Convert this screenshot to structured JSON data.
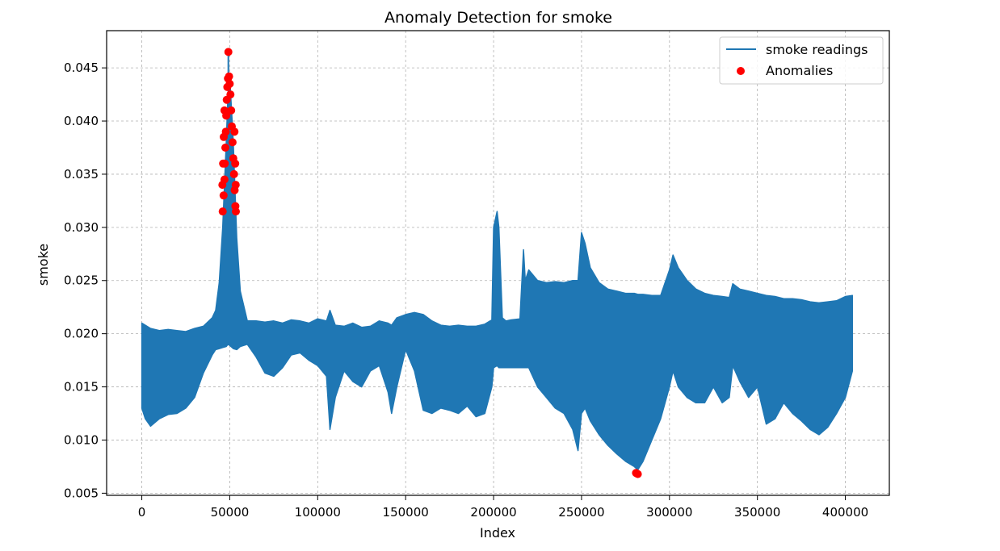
{
  "chart_data": {
    "type": "line",
    "title": "Anomaly Detection for smoke",
    "xlabel": "Index",
    "ylabel": "smoke",
    "xlim": [
      -20000,
      425000
    ],
    "ylim": [
      0.0048,
      0.0485
    ],
    "xticks": [
      0,
      50000,
      100000,
      150000,
      200000,
      250000,
      300000,
      350000,
      400000
    ],
    "yticks": [
      0.005,
      0.01,
      0.015,
      0.02,
      0.025,
      0.03,
      0.035,
      0.04,
      0.045
    ],
    "grid": true,
    "legend_position": "top-right",
    "legend": [
      "smoke readings",
      "Anomalies"
    ],
    "colors": {
      "line": "#1f77b4",
      "anomaly": "#ff0000",
      "grid": "#b0b0b0"
    },
    "series": [
      {
        "name": "smoke readings",
        "type": "band",
        "x": [
          0,
          2000,
          5000,
          10000,
          15000,
          20000,
          25000,
          30000,
          35000,
          40000,
          42000,
          44000,
          46000,
          48000,
          49000,
          50000,
          52000,
          54000,
          56000,
          60000,
          65000,
          70000,
          75000,
          80000,
          85000,
          90000,
          95000,
          100000,
          105000,
          107000,
          110000,
          115000,
          120000,
          125000,
          130000,
          135000,
          140000,
          142000,
          145000,
          150000,
          155000,
          160000,
          165000,
          170000,
          175000,
          180000,
          185000,
          190000,
          195000,
          199000,
          200000,
          202000,
          203000,
          205000,
          207000,
          210000,
          215000,
          217000,
          218000,
          220000,
          225000,
          230000,
          235000,
          240000,
          245000,
          248000,
          250000,
          252000,
          255000,
          260000,
          265000,
          270000,
          275000,
          280000,
          282000,
          285000,
          290000,
          295000,
          300000,
          302000,
          305000,
          310000,
          315000,
          320000,
          325000,
          330000,
          334000,
          336000,
          340000,
          345000,
          350000,
          355000,
          360000,
          365000,
          370000,
          375000,
          380000,
          385000,
          390000,
          395000,
          400000,
          404000
        ],
        "upper": [
          0.021,
          0.0208,
          0.0205,
          0.0203,
          0.0204,
          0.0203,
          0.0202,
          0.0205,
          0.0207,
          0.0215,
          0.0222,
          0.0248,
          0.03,
          0.038,
          0.0425,
          0.0442,
          0.038,
          0.029,
          0.024,
          0.0212,
          0.0212,
          0.0211,
          0.0212,
          0.021,
          0.0213,
          0.0212,
          0.021,
          0.0214,
          0.0212,
          0.0222,
          0.0208,
          0.0207,
          0.021,
          0.0206,
          0.0207,
          0.0212,
          0.021,
          0.0208,
          0.0215,
          0.0218,
          0.022,
          0.0218,
          0.0212,
          0.0208,
          0.0207,
          0.0208,
          0.0207,
          0.0207,
          0.0209,
          0.0213,
          0.03,
          0.0315,
          0.03,
          0.0215,
          0.0212,
          0.0213,
          0.0214,
          0.0279,
          0.025,
          0.026,
          0.025,
          0.0248,
          0.0249,
          0.0248,
          0.025,
          0.025,
          0.0295,
          0.0285,
          0.0262,
          0.0248,
          0.0242,
          0.024,
          0.0238,
          0.0238,
          0.0237,
          0.0237,
          0.0236,
          0.0236,
          0.026,
          0.0274,
          0.0262,
          0.025,
          0.0242,
          0.0238,
          0.0236,
          0.0235,
          0.0234,
          0.0247,
          0.0242,
          0.024,
          0.0238,
          0.0236,
          0.0235,
          0.0233,
          0.0233,
          0.0232,
          0.023,
          0.0229,
          0.023,
          0.0231,
          0.0235,
          0.0236
        ],
        "lower": [
          0.013,
          0.012,
          0.0113,
          0.012,
          0.0124,
          0.0125,
          0.013,
          0.014,
          0.0163,
          0.018,
          0.0185,
          0.0186,
          0.0187,
          0.0188,
          0.019,
          0.0189,
          0.0186,
          0.0185,
          0.0188,
          0.019,
          0.0178,
          0.0163,
          0.016,
          0.0168,
          0.018,
          0.0182,
          0.0175,
          0.017,
          0.016,
          0.011,
          0.014,
          0.0165,
          0.0155,
          0.015,
          0.0165,
          0.017,
          0.0145,
          0.0125,
          0.015,
          0.0185,
          0.0165,
          0.0128,
          0.0125,
          0.013,
          0.0128,
          0.0125,
          0.0132,
          0.0122,
          0.0125,
          0.015,
          0.0168,
          0.017,
          0.0168,
          0.0168,
          0.0168,
          0.0168,
          0.0168,
          0.0168,
          0.0168,
          0.0168,
          0.015,
          0.014,
          0.013,
          0.0125,
          0.011,
          0.009,
          0.0125,
          0.013,
          0.0118,
          0.0105,
          0.0095,
          0.0087,
          0.008,
          0.0075,
          0.0072,
          0.008,
          0.01,
          0.012,
          0.015,
          0.0165,
          0.015,
          0.014,
          0.0135,
          0.0135,
          0.015,
          0.0135,
          0.014,
          0.017,
          0.0155,
          0.014,
          0.015,
          0.0115,
          0.012,
          0.0135,
          0.0125,
          0.0118,
          0.011,
          0.0105,
          0.0112,
          0.0125,
          0.014,
          0.0165
        ]
      },
      {
        "name": "Anomalies",
        "type": "scatter",
        "points": [
          [
            46000,
            0.0315
          ],
          [
            46500,
            0.033
          ],
          [
            47000,
            0.0345
          ],
          [
            47200,
            0.036
          ],
          [
            47500,
            0.0375
          ],
          [
            47800,
            0.039
          ],
          [
            48000,
            0.0405
          ],
          [
            48300,
            0.042
          ],
          [
            48600,
            0.0432
          ],
          [
            49000,
            0.044
          ],
          [
            49200,
            0.0465
          ],
          [
            49600,
            0.0442
          ],
          [
            50000,
            0.0435
          ],
          [
            50400,
            0.0425
          ],
          [
            50800,
            0.041
          ],
          [
            51200,
            0.0395
          ],
          [
            51600,
            0.038
          ],
          [
            52000,
            0.0365
          ],
          [
            52400,
            0.035
          ],
          [
            52800,
            0.0335
          ],
          [
            53200,
            0.032
          ],
          [
            53500,
            0.0315
          ],
          [
            45800,
            0.034
          ],
          [
            46200,
            0.036
          ],
          [
            46600,
            0.0385
          ],
          [
            47000,
            0.041
          ],
          [
            52700,
            0.039
          ],
          [
            53100,
            0.036
          ],
          [
            53400,
            0.034
          ],
          [
            281000,
            0.0069
          ],
          [
            282000,
            0.0068
          ]
        ]
      }
    ]
  }
}
